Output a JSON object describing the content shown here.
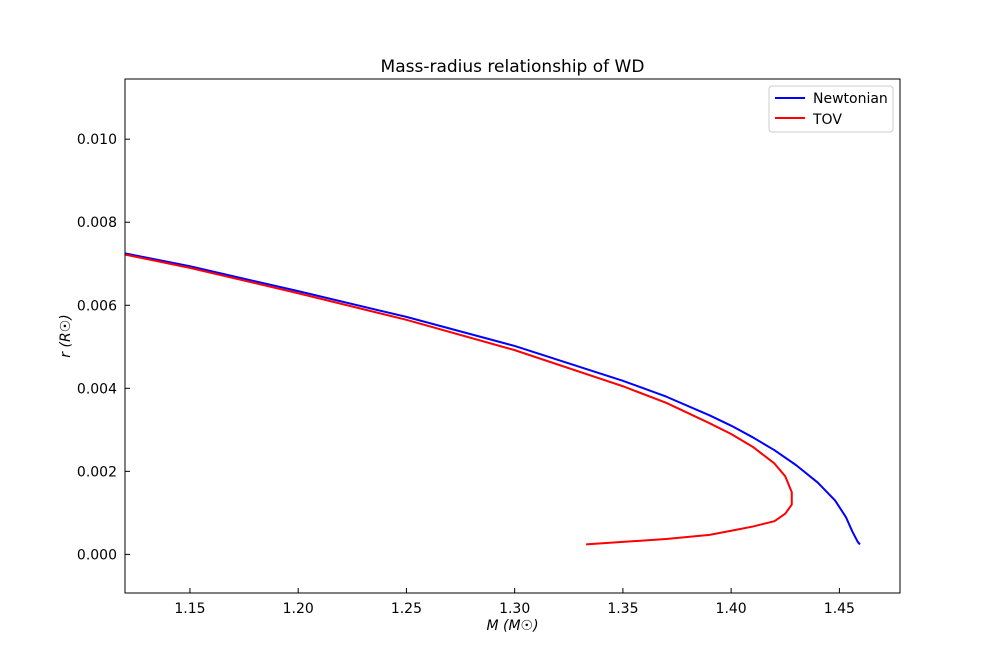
{
  "chart_data": {
    "type": "line",
    "title": "Mass-radius relationship of WD",
    "xlabel": "M (M☉)",
    "ylabel": "r (R☉)",
    "xlim": [
      1.12,
      1.478
    ],
    "ylim": [
      -0.00093,
      0.01145
    ],
    "x_ticks": [
      1.15,
      1.2,
      1.25,
      1.3,
      1.35,
      1.4,
      1.45
    ],
    "x_tick_labels": [
      "1.15",
      "1.20",
      "1.25",
      "1.30",
      "1.35",
      "1.40",
      "1.45"
    ],
    "y_ticks": [
      0.0,
      0.002,
      0.004,
      0.006,
      0.008,
      0.01
    ],
    "y_tick_labels": [
      "0.000",
      "0.002",
      "0.004",
      "0.006",
      "0.008",
      "0.010"
    ],
    "grid": false,
    "legend_position": "top-right",
    "series": [
      {
        "name": "Newtonian",
        "color": "#0000ff",
        "points": [
          [
            1.115,
            0.00731
          ],
          [
            1.12,
            0.00725
          ],
          [
            1.15,
            0.00694
          ],
          [
            1.2,
            0.00634
          ],
          [
            1.25,
            0.00572
          ],
          [
            1.3,
            0.00502
          ],
          [
            1.35,
            0.00418
          ],
          [
            1.37,
            0.0038
          ],
          [
            1.39,
            0.00335
          ],
          [
            1.4,
            0.0031
          ],
          [
            1.41,
            0.00282
          ],
          [
            1.42,
            0.00251
          ],
          [
            1.43,
            0.00215
          ],
          [
            1.44,
            0.00173
          ],
          [
            1.448,
            0.0013
          ],
          [
            1.453,
            0.0009
          ],
          [
            1.456,
            0.00055
          ],
          [
            1.4585,
            0.0003
          ],
          [
            1.4595,
            0.00024
          ]
        ]
      },
      {
        "name": "TOV",
        "color": "#ff0000",
        "points": [
          [
            1.115,
            0.00728
          ],
          [
            1.12,
            0.00722
          ],
          [
            1.15,
            0.0069
          ],
          [
            1.2,
            0.00629
          ],
          [
            1.25,
            0.00565
          ],
          [
            1.3,
            0.00492
          ],
          [
            1.35,
            0.00405
          ],
          [
            1.37,
            0.00365
          ],
          [
            1.39,
            0.00316
          ],
          [
            1.4,
            0.0029
          ],
          [
            1.41,
            0.00259
          ],
          [
            1.42,
            0.00219
          ],
          [
            1.425,
            0.00188
          ],
          [
            1.428,
            0.0015
          ],
          [
            1.428,
            0.0012
          ],
          [
            1.425,
            0.00098
          ],
          [
            1.42,
            0.0008
          ],
          [
            1.41,
            0.00067
          ],
          [
            1.4,
            0.00057
          ],
          [
            1.39,
            0.00047
          ],
          [
            1.37,
            0.00037
          ],
          [
            1.35,
            0.0003
          ],
          [
            1.333,
            0.00024
          ]
        ]
      }
    ]
  }
}
